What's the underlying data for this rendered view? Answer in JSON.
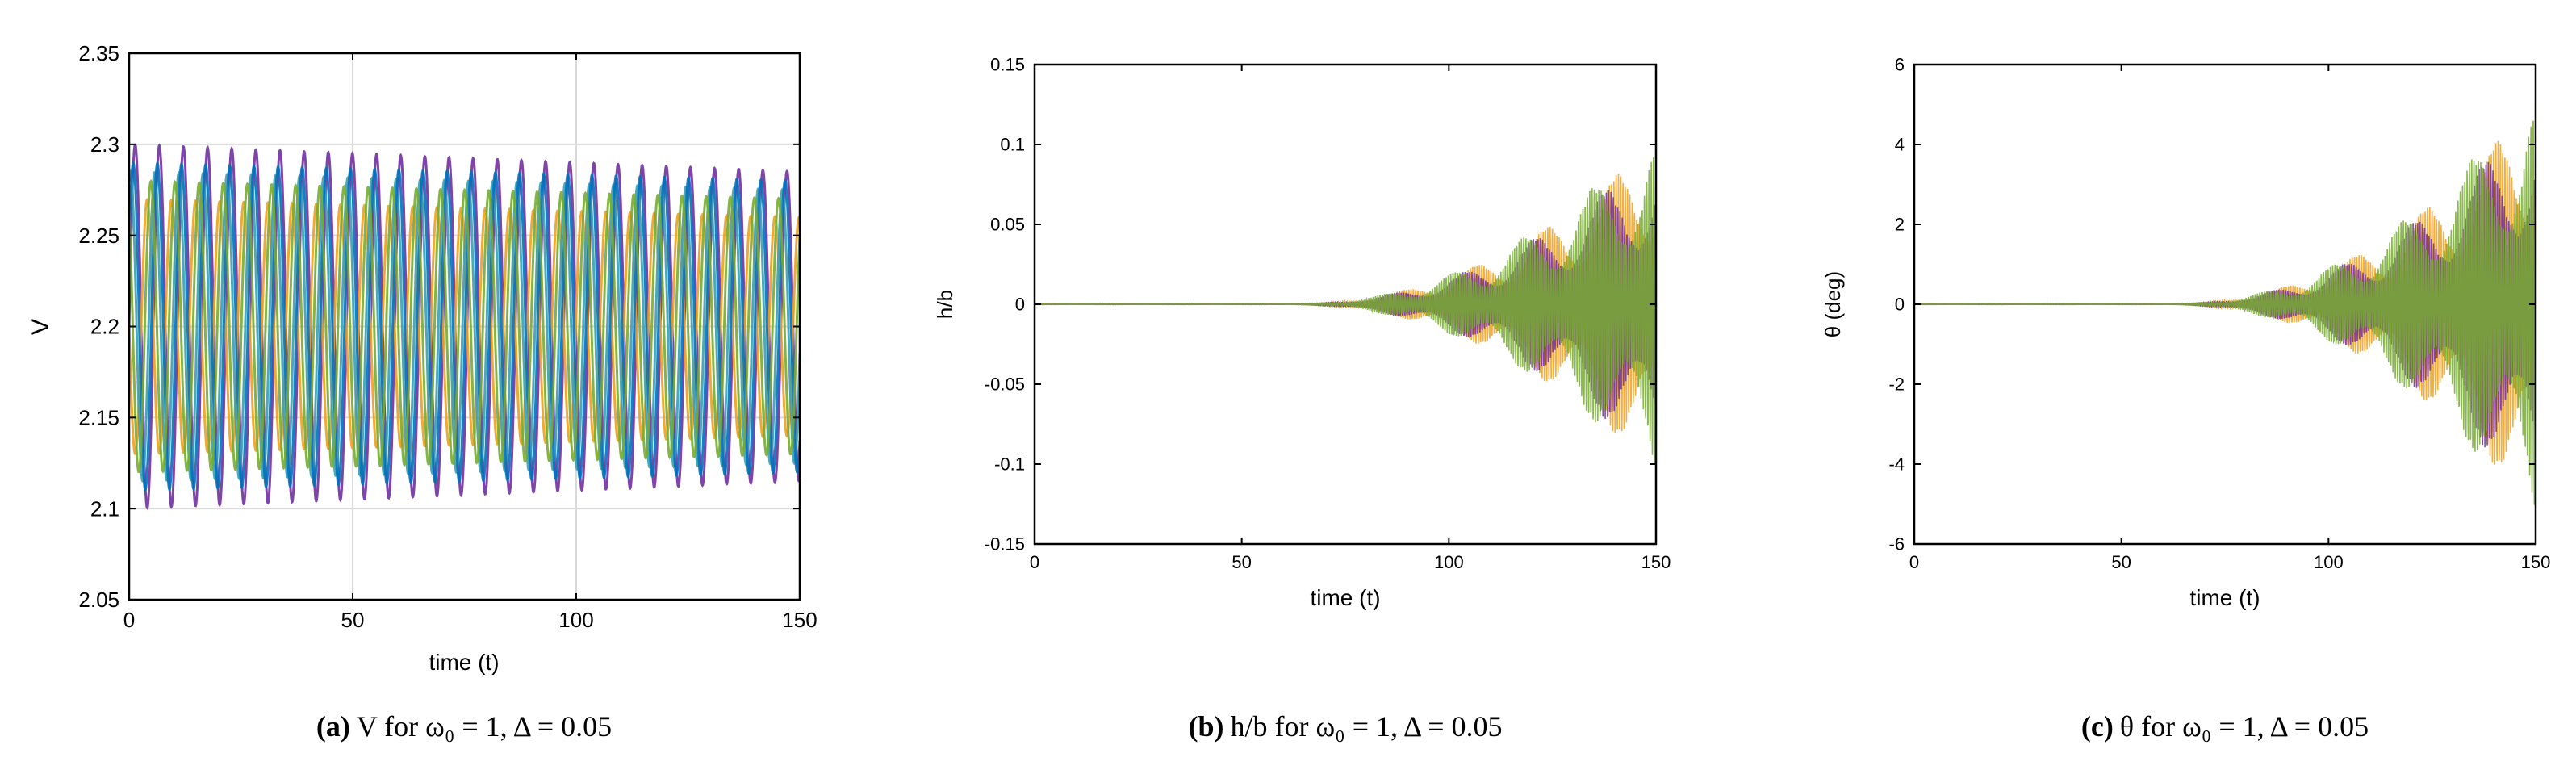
{
  "chart_data": [
    {
      "type": "line",
      "panel": "a",
      "caption": {
        "label": "(a)",
        "text": "V for ω₀ = 1, Δ = 0.05"
      },
      "xlabel": "time (t)",
      "ylabel": "V",
      "xlim": [
        0,
        150
      ],
      "ylim": [
        2.05,
        2.35
      ],
      "xticks": [
        "0",
        "50",
        "100",
        "150"
      ],
      "yticks": [
        "2.05",
        "2.1",
        "2.15",
        "2.2",
        "2.25",
        "2.3",
        "2.35"
      ],
      "grid": true,
      "series": [
        {
          "color": "#7030a0",
          "center": 2.2,
          "amplitude_start": 0.1,
          "amplitude_end": 0.085,
          "period": 5.4,
          "phase": 0.0
        },
        {
          "color": "#f0a020",
          "center": 2.2,
          "amplitude_start": 0.07,
          "amplitude_end": 0.06,
          "period": 5.4,
          "phase": 3.14
        },
        {
          "color": "#3aa0b0",
          "center": 2.2,
          "amplitude_start": 0.085,
          "amplitude_end": 0.075,
          "period": 5.4,
          "phase": 1.2
        },
        {
          "color": "#0072bd",
          "center": 2.2,
          "amplitude_start": 0.09,
          "amplitude_end": 0.08,
          "period": 5.4,
          "phase": 0.5
        },
        {
          "color": "#77ac30",
          "center": 2.2,
          "amplitude_start": 0.08,
          "amplitude_end": 0.07,
          "period": 5.4,
          "phase": 2.2
        }
      ]
    },
    {
      "type": "line",
      "panel": "b",
      "caption": {
        "label": "(b)",
        "text": "h/b for ω₀ = 1, Δ = 0.05"
      },
      "xlabel": "time (t)",
      "ylabel": "h/b",
      "xlim": [
        0,
        150
      ],
      "ylim": [
        -0.15,
        0.15
      ],
      "xticks": [
        "0",
        "50",
        "100",
        "150"
      ],
      "yticks": [
        "-0.15",
        "-0.1",
        "-0.05",
        "0",
        "0.05",
        "0.1",
        "0.15"
      ],
      "grid": false,
      "envelope": {
        "t_onset": 60,
        "max_amplitude": 0.11
      },
      "series": [
        {
          "color": "#f0a020",
          "scale": 0.95
        },
        {
          "color": "#7030a0",
          "scale": 0.9
        },
        {
          "color": "#77ac30",
          "scale": 1.0
        }
      ]
    },
    {
      "type": "line",
      "panel": "c",
      "caption": {
        "label": "(c)",
        "text": "θ for ω₀ = 1, Δ = 0.05"
      },
      "xlabel": "time (t)",
      "ylabel": "θ (deg)",
      "xlim": [
        0,
        150
      ],
      "ylim": [
        -6,
        6
      ],
      "xticks": [
        "0",
        "50",
        "100",
        "150"
      ],
      "yticks": [
        "-6",
        "-4",
        "-2",
        "0",
        "2",
        "4",
        "6"
      ],
      "grid": false,
      "envelope": {
        "t_onset": 60,
        "max_amplitude": 5.5
      },
      "series": [
        {
          "color": "#f0a020",
          "scale": 0.95
        },
        {
          "color": "#7030a0",
          "scale": 0.9
        },
        {
          "color": "#77ac30",
          "scale": 1.0
        }
      ]
    }
  ]
}
